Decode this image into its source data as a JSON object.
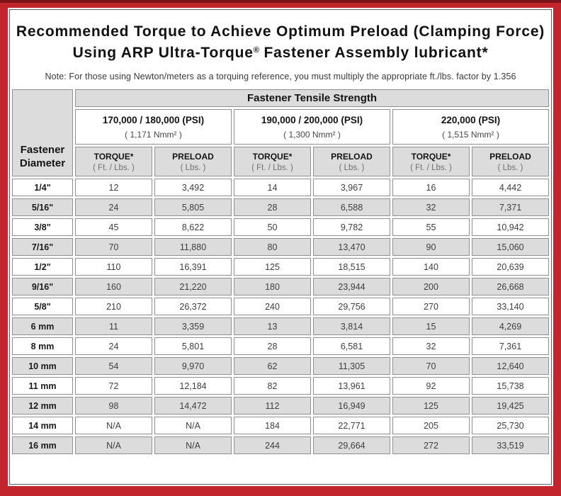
{
  "header": {
    "title_line1": "Recommended Torque to Achieve Optimum Preload (Clamping Force)",
    "title_line2_prefix": "Using ARP Ultra-Torque",
    "title_line2_reg": "®",
    "title_line2_suffix": " Fastener Assembly lubricant*",
    "note": "Note: For those using Newton/meters as a torquing reference, you must multiply the appropriate ft./lbs. factor by 1.356"
  },
  "table": {
    "corner": {
      "line1": "Fastener",
      "line2": "Diameter"
    },
    "tensile_header": "Fastener Tensile Strength",
    "strength_groups": [
      {
        "psi": "170,000 / 180,000 (PSI)",
        "nmm": "( 1,171 Nmm² )"
      },
      {
        "psi": "190,000 / 200,000 (PSI)",
        "nmm": "( 1,300 Nmm² )"
      },
      {
        "psi": "220,000 (PSI)",
        "nmm": "( 1,515 Nmm² )"
      }
    ],
    "col_headers": [
      {
        "label": "TORQUE*",
        "unit": "( Ft. / Lbs. )"
      },
      {
        "label": "PRELOAD",
        "unit": "( Lbs. )"
      },
      {
        "label": "TORQUE*",
        "unit": "( Ft. / Lbs. )"
      },
      {
        "label": "PRELOAD",
        "unit": "( Lbs. )"
      },
      {
        "label": "TORQUE*",
        "unit": "( Ft. / Lbs. )"
      },
      {
        "label": "PRELOAD",
        "unit": "( Lbs. )"
      }
    ],
    "rows": [
      {
        "diameter": "1/4\"",
        "values": [
          "12",
          "3,492",
          "14",
          "3,967",
          "16",
          "4,442"
        ]
      },
      {
        "diameter": "5/16\"",
        "values": [
          "24",
          "5,805",
          "28",
          "6,588",
          "32",
          "7,371"
        ]
      },
      {
        "diameter": "3/8\"",
        "values": [
          "45",
          "8,622",
          "50",
          "9,782",
          "55",
          "10,942"
        ]
      },
      {
        "diameter": "7/16\"",
        "values": [
          "70",
          "11,880",
          "80",
          "13,470",
          "90",
          "15,060"
        ]
      },
      {
        "diameter": "1/2\"",
        "values": [
          "110",
          "16,391",
          "125",
          "18,515",
          "140",
          "20,639"
        ]
      },
      {
        "diameter": "9/16\"",
        "values": [
          "160",
          "21,220",
          "180",
          "23,944",
          "200",
          "26,668"
        ]
      },
      {
        "diameter": "5/8\"",
        "values": [
          "210",
          "26,372",
          "240",
          "29,756",
          "270",
          "33,140"
        ]
      },
      {
        "diameter": "6 mm",
        "values": [
          "11",
          "3,359",
          "13",
          "3,814",
          "15",
          "4,269"
        ]
      },
      {
        "diameter": "8 mm",
        "values": [
          "24",
          "5,801",
          "28",
          "6,581",
          "32",
          "7,361"
        ]
      },
      {
        "diameter": "10 mm",
        "values": [
          "54",
          "9,970",
          "62",
          "11,305",
          "70",
          "12,640"
        ]
      },
      {
        "diameter": "11 mm",
        "values": [
          "72",
          "12,184",
          "82",
          "13,961",
          "92",
          "15,738"
        ]
      },
      {
        "diameter": "12 mm",
        "values": [
          "98",
          "14,472",
          "112",
          "16,949",
          "125",
          "19,425"
        ]
      },
      {
        "diameter": "14 mm",
        "values": [
          "N/A",
          "N/A",
          "184",
          "22,771",
          "205",
          "25,730"
        ]
      },
      {
        "diameter": "16 mm",
        "values": [
          "N/A",
          "N/A",
          "244",
          "29,664",
          "272",
          "33,519"
        ]
      }
    ]
  },
  "colors": {
    "frame_red": "#c2262c",
    "frame_top_strip": "#7c151a",
    "shade_gray": "#dcdcdc",
    "cell_border": "#8f8f8f"
  }
}
